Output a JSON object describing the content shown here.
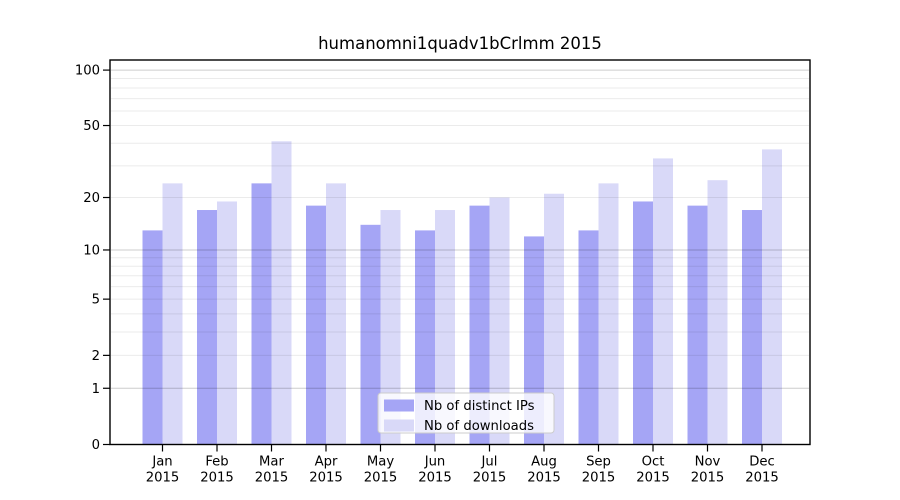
{
  "chart_data": {
    "type": "bar",
    "title": "humanomni1quadv1bCrlmm 2015",
    "categories": [
      "Jan",
      "Feb",
      "Mar",
      "Apr",
      "May",
      "Jun",
      "Jul",
      "Aug",
      "Sep",
      "Oct",
      "Nov",
      "Dec"
    ],
    "category_year": "2015",
    "series": [
      {
        "name": "Nb of distinct IPs",
        "color": "#a5a5f5",
        "values": [
          13,
          17,
          24,
          18,
          14,
          13,
          18,
          12,
          13,
          19,
          18,
          17
        ]
      },
      {
        "name": "Nb of downloads",
        "color": "#d9d9f8",
        "values": [
          24,
          19,
          41,
          24,
          17,
          17,
          20,
          21,
          24,
          33,
          25,
          37
        ]
      }
    ],
    "yscale": "log1p",
    "ylim": [
      0,
      113
    ],
    "yticks": [
      {
        "value": 0,
        "label": "0"
      },
      {
        "value": 1,
        "label": "1"
      },
      {
        "value": 2,
        "label": "2"
      },
      {
        "value": 5,
        "label": "5"
      },
      {
        "value": 10,
        "label": "10"
      },
      {
        "value": 20,
        "label": "20"
      },
      {
        "value": 50,
        "label": "50"
      },
      {
        "value": 100,
        "label": "100"
      }
    ],
    "major_gridlines": [
      1,
      10,
      100
    ],
    "minor_gridlines": [
      2,
      3,
      4,
      5,
      6,
      7,
      8,
      9,
      20,
      30,
      40,
      50,
      60,
      70,
      80,
      90
    ],
    "grid": true,
    "legend_position": "bottom-center",
    "colors": {
      "major_grid": "rgba(0,0,0,0.20)",
      "minor_grid": "rgba(0,0,0,0.08)",
      "axis": "#000000",
      "legend_border": "#cccccc",
      "legend_bg": "rgba(255,255,255,0.8)"
    }
  }
}
